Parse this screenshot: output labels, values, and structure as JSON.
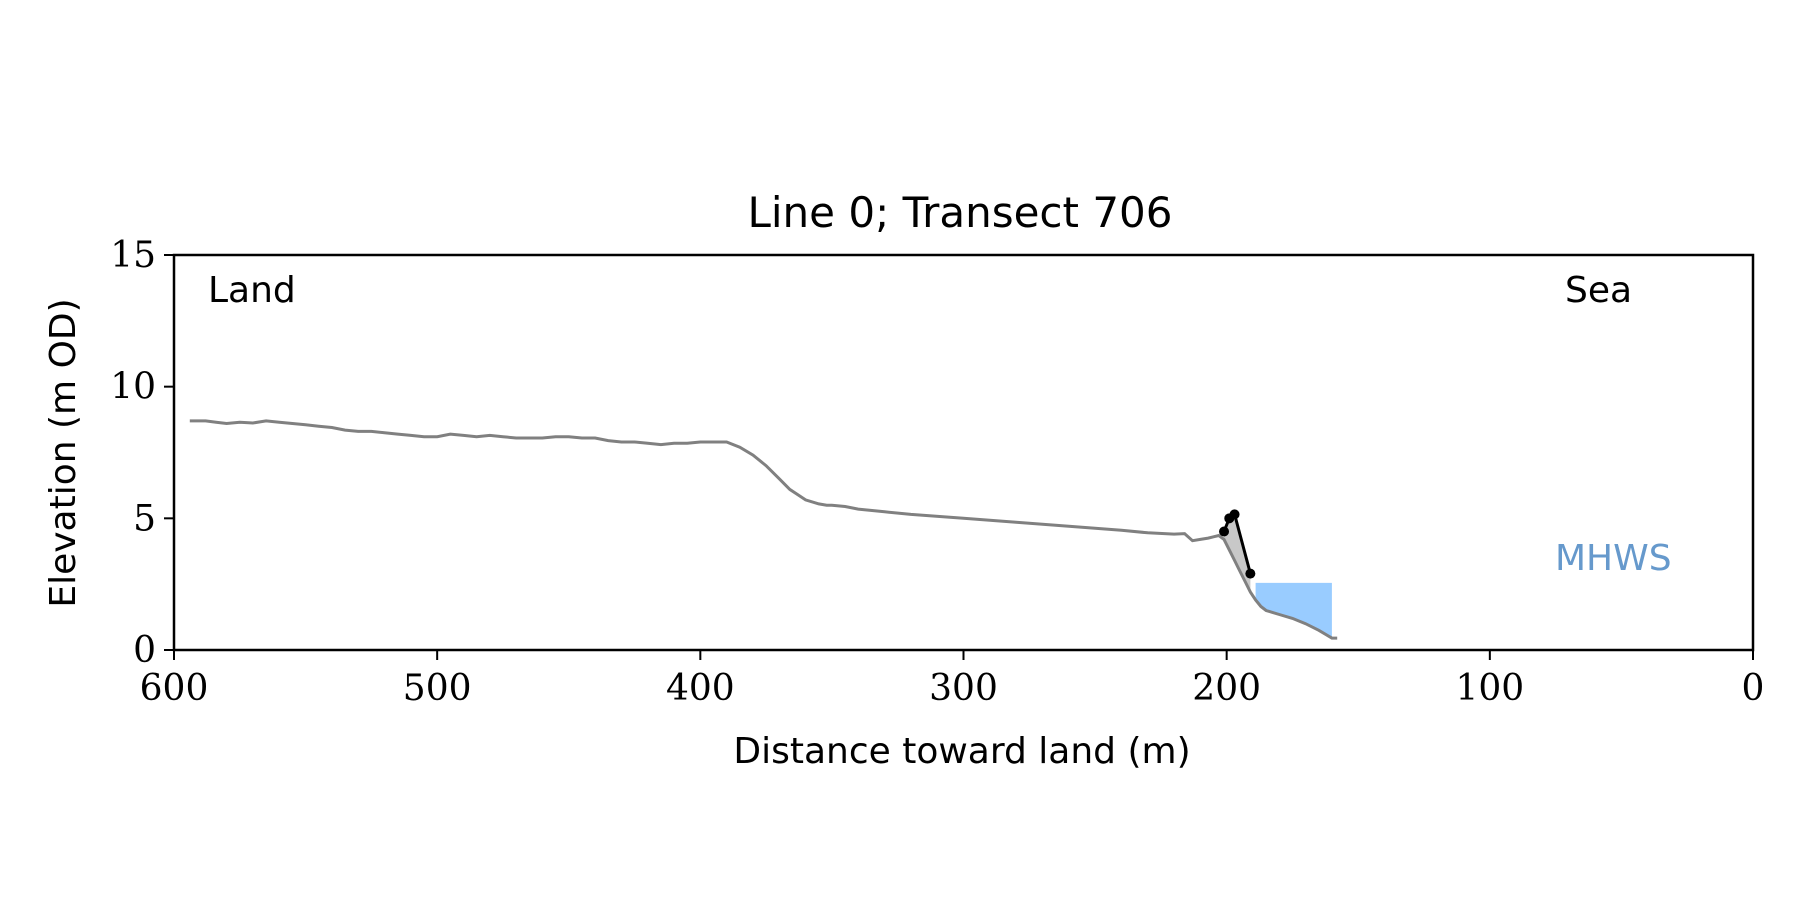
{
  "chart_data": {
    "type": "line",
    "title": "Line 0; Transect 706",
    "xlabel": "Distance toward land (m)",
    "ylabel": "Elevation (m OD)",
    "xlim": [
      600,
      0
    ],
    "ylim": [
      0,
      15
    ],
    "x_ticks": [
      600,
      500,
      400,
      300,
      200,
      100,
      0
    ],
    "y_ticks": [
      0,
      5,
      10,
      15
    ],
    "grid": false,
    "annotations": {
      "land": "Land",
      "sea": "Sea",
      "mhws": "MHWS"
    },
    "colors": {
      "profile": "#808080",
      "cliff": "#000000",
      "cliff_fill": "#c8c8c8",
      "water": "#99ccff",
      "mhws_text": "#6699cc"
    },
    "profile": {
      "x": [
        594,
        588,
        584,
        580,
        575,
        570,
        565,
        560,
        555,
        550,
        545,
        540,
        535,
        530,
        525,
        520,
        515,
        510,
        505,
        500,
        495,
        490,
        485,
        480,
        475,
        470,
        465,
        460,
        455,
        450,
        445,
        440,
        435,
        430,
        425,
        420,
        415,
        410,
        405,
        400,
        395,
        390,
        385,
        380,
        375,
        370,
        366,
        363,
        360,
        355,
        352,
        350,
        345,
        340,
        330,
        320,
        300,
        280,
        260,
        240,
        230,
        220,
        216,
        213,
        210,
        207,
        205,
        203,
        201,
        199,
        197,
        195,
        193,
        191,
        189,
        187,
        185,
        180,
        175,
        170,
        165,
        160,
        158
      ],
      "y": [
        8.7,
        8.7,
        8.65,
        8.6,
        8.65,
        8.62,
        8.7,
        8.65,
        8.6,
        8.55,
        8.5,
        8.45,
        8.35,
        8.3,
        8.3,
        8.25,
        8.2,
        8.15,
        8.1,
        8.1,
        8.2,
        8.15,
        8.1,
        8.15,
        8.1,
        8.05,
        8.05,
        8.05,
        8.1,
        8.1,
        8.05,
        8.05,
        7.95,
        7.9,
        7.9,
        7.85,
        7.8,
        7.85,
        7.85,
        7.9,
        7.9,
        7.9,
        7.7,
        7.4,
        7.0,
        6.5,
        6.1,
        5.9,
        5.7,
        5.55,
        5.5,
        5.5,
        5.45,
        5.35,
        5.25,
        5.15,
        5.0,
        4.85,
        4.7,
        4.55,
        4.45,
        4.4,
        4.42,
        4.15,
        4.2,
        4.25,
        4.3,
        4.35,
        4.2,
        3.8,
        3.4,
        3.0,
        2.6,
        2.2,
        1.9,
        1.65,
        1.5,
        1.35,
        1.2,
        1.0,
        0.75,
        0.45,
        0.45
      ]
    },
    "cliff_points": {
      "x": [
        201,
        199,
        197,
        191
      ],
      "y": [
        4.5,
        5.0,
        5.15,
        2.9
      ]
    },
    "water": {
      "x_range": [
        189,
        160
      ],
      "level": 2.55
    }
  }
}
